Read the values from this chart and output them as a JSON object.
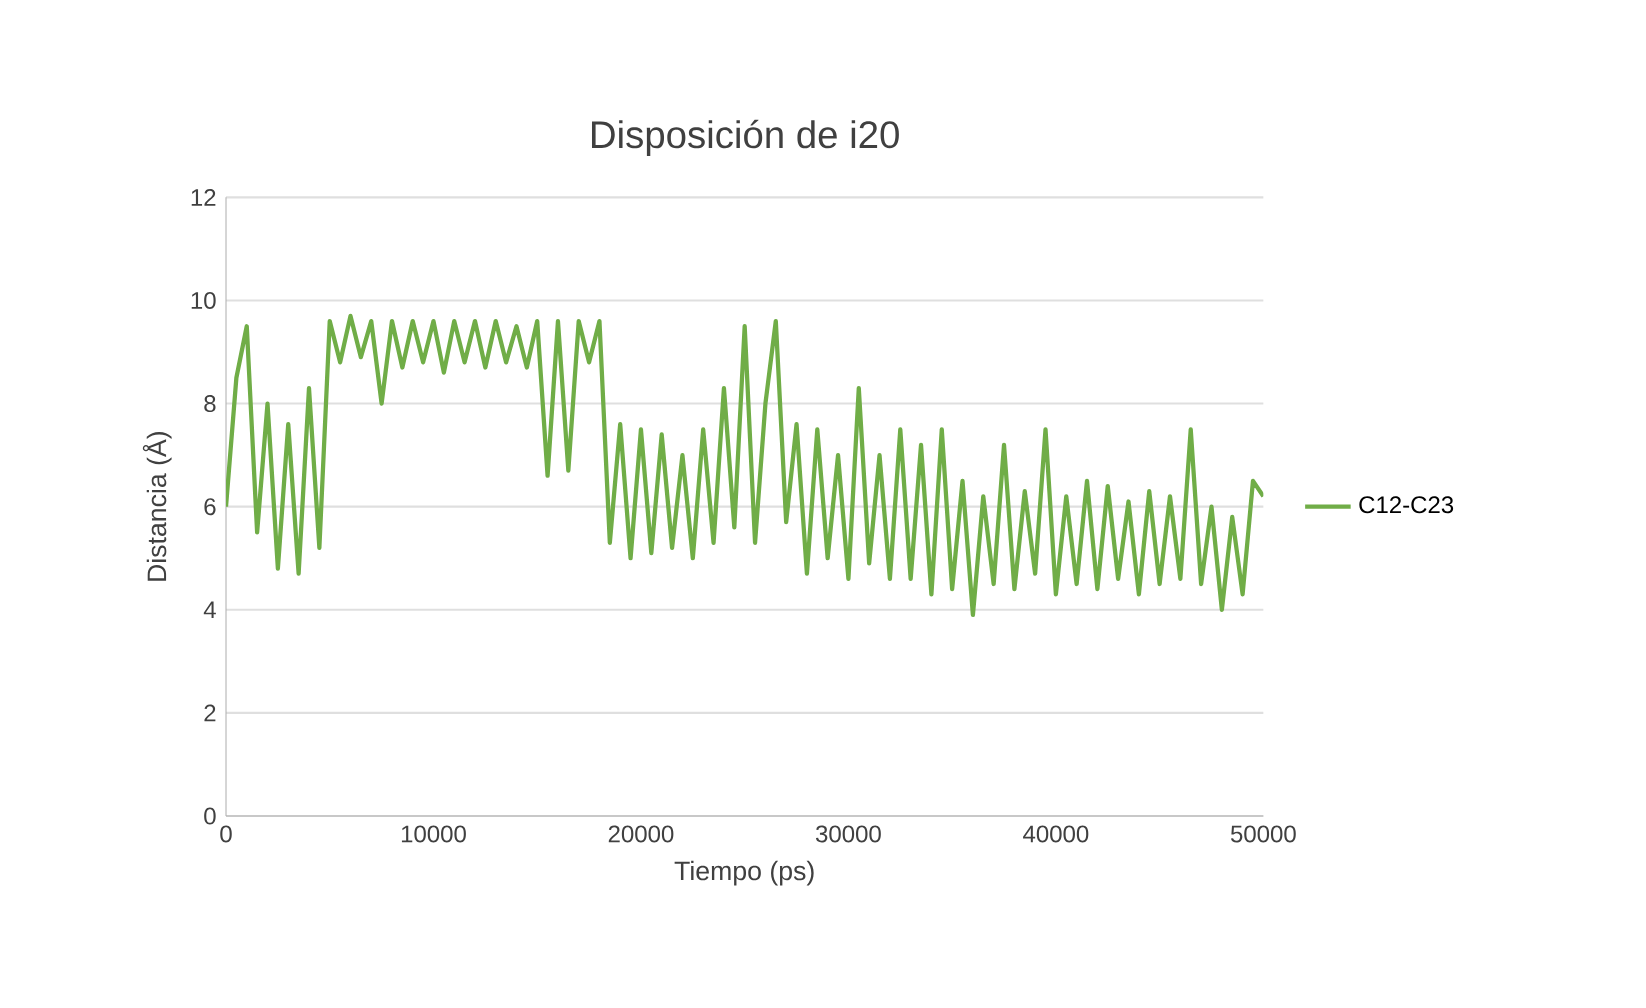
{
  "chart_data": {
    "type": "line",
    "title": "Disposición de i20",
    "xlabel": "Tiempo (ps)",
    "ylabel": "Distancia (Å)",
    "xlim": [
      0,
      50000
    ],
    "xticks": [
      0,
      10000,
      20000,
      30000,
      40000,
      50000
    ],
    "ylim": [
      0,
      12
    ],
    "yticks": [
      0,
      2,
      4,
      6,
      8,
      10,
      12
    ],
    "grid": "y",
    "legend": "right",
    "marker": "none",
    "line_style": "solid",
    "x": [
      0,
      500,
      1000,
      1500,
      2000,
      2500,
      3000,
      3500,
      4000,
      4500,
      5000,
      5500,
      6000,
      6500,
      7000,
      7500,
      8000,
      8500,
      9000,
      9500,
      10000,
      10500,
      11000,
      11500,
      12000,
      12500,
      13000,
      13500,
      14000,
      14500,
      15000,
      15500,
      16000,
      16500,
      17000,
      17500,
      18000,
      18500,
      19000,
      19500,
      20000,
      20500,
      21000,
      21500,
      22000,
      22500,
      23000,
      23500,
      24000,
      24500,
      25000,
      25500,
      26000,
      26500,
      27000,
      27500,
      28000,
      28500,
      29000,
      29500,
      30000,
      30500,
      31000,
      31500,
      32000,
      32500,
      33000,
      33500,
      34000,
      34500,
      35000,
      35500,
      36000,
      36500,
      37000,
      37500,
      38000,
      38500,
      39000,
      39500,
      40000,
      40500,
      41000,
      41500,
      42000,
      42500,
      43000,
      43500,
      44000,
      44500,
      45000,
      45500,
      46000,
      46500,
      47000,
      47500,
      48000,
      48500,
      49000,
      49500,
      50000
    ],
    "series": [
      {
        "name": "C12-C23",
        "color": "#70ad47",
        "values": [
          6.0,
          8.5,
          9.5,
          5.5,
          8.0,
          4.8,
          7.6,
          4.7,
          8.3,
          5.2,
          9.6,
          8.8,
          9.7,
          8.9,
          9.6,
          8.0,
          9.6,
          8.7,
          9.6,
          8.8,
          9.6,
          8.6,
          9.6,
          8.8,
          9.6,
          8.7,
          9.6,
          8.8,
          9.5,
          8.7,
          9.6,
          6.6,
          9.6,
          6.7,
          9.6,
          8.8,
          9.6,
          5.3,
          7.6,
          5.0,
          7.5,
          5.1,
          7.4,
          5.2,
          7.0,
          5.0,
          7.5,
          5.3,
          8.3,
          5.6,
          9.5,
          5.3,
          8.0,
          9.6,
          5.7,
          7.6,
          4.7,
          7.5,
          5.0,
          7.0,
          4.6,
          8.3,
          4.9,
          7.0,
          4.6,
          7.5,
          4.6,
          7.2,
          4.3,
          7.5,
          4.4,
          6.5,
          3.9,
          6.2,
          4.5,
          7.2,
          4.4,
          6.3,
          4.7,
          7.5,
          4.3,
          6.2,
          4.5,
          6.5,
          4.4,
          6.4,
          4.6,
          6.1,
          4.3,
          6.3,
          4.5,
          6.2,
          4.6,
          7.5,
          4.5,
          6.0,
          4.0,
          5.8,
          4.3,
          6.5,
          6.2
        ]
      }
    ]
  }
}
